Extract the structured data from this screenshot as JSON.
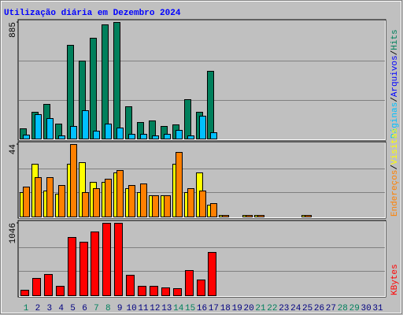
{
  "title": "Utilização diária em Dezembro 2024",
  "legend_separator": "/",
  "categories": [
    "1",
    "2",
    "3",
    "4",
    "5",
    "6",
    "7",
    "8",
    "9",
    "10",
    "11",
    "12",
    "13",
    "14",
    "15",
    "16",
    "17",
    "18",
    "19",
    "20",
    "21",
    "22",
    "23",
    "24",
    "25",
    "26",
    "27",
    "28",
    "29",
    "30",
    "31"
  ],
  "category_colors": [
    "#00805C",
    "#000080",
    "#000080",
    "#000080",
    "#000080",
    "#000080",
    "#00805C",
    "#00805C",
    "#000080",
    "#000080",
    "#000080",
    "#000080",
    "#000080",
    "#00805C",
    "#00805C",
    "#000080",
    "#000080",
    "#000080",
    "#000080",
    "#000080",
    "#00805C",
    "#00805C",
    "#000080",
    "#000080",
    "#000080",
    "#000080",
    "#000080",
    "#00805C",
    "#00805C",
    "#000080",
    "#000080"
  ],
  "chart_data": [
    {
      "type": "bar",
      "ylim": [
        0,
        885
      ],
      "yticks": [
        885
      ],
      "grid_values": [
        295,
        590
      ],
      "series": [
        {
          "name": "Hits",
          "color": "#00805C",
          "values": [
            78,
            203,
            263,
            114,
            712,
            592,
            765,
            867,
            885,
            245,
            126,
            138,
            96,
            108,
            299,
            203,
            514,
            2,
            0,
            2,
            2,
            0,
            0,
            0,
            2,
            0,
            0,
            0,
            0,
            0,
            0
          ]
        },
        {
          "name": "Arquivos",
          "color": "#0000FF",
          "values": [
            30,
            185,
            155,
            24,
            96,
            215,
            60,
            114,
            84,
            36,
            36,
            24,
            36,
            66,
            24,
            173,
            48,
            0,
            0,
            0,
            0,
            0,
            0,
            0,
            0,
            0,
            0,
            0,
            0,
            0,
            0
          ]
        },
        {
          "name": "Páginas",
          "color": "#00C0FF",
          "values": [
            30,
            185,
            155,
            24,
            96,
            215,
            60,
            114,
            84,
            36,
            36,
            24,
            36,
            66,
            24,
            173,
            48,
            0,
            0,
            0,
            0,
            0,
            0,
            0,
            0,
            0,
            0,
            0,
            0,
            0,
            0
          ]
        }
      ]
    },
    {
      "type": "bar",
      "ylim": [
        0,
        44
      ],
      "yticks": [
        44
      ],
      "grid_values": [
        14.67,
        29.33
      ],
      "series": [
        {
          "name": "Visitas",
          "color": "#FFFF00",
          "values": [
            15,
            32,
            16,
            14,
            32,
            33,
            21,
            21,
            27,
            17,
            15,
            13,
            13,
            32,
            15,
            27,
            7,
            1,
            0,
            1,
            1,
            0,
            0,
            0,
            1,
            0,
            0,
            0,
            0,
            0,
            0
          ]
        },
        {
          "name": "Endereços",
          "color": "#FF8000",
          "values": [
            18,
            24,
            24,
            19,
            44,
            15,
            17,
            23,
            28,
            19,
            20,
            13,
            13,
            39,
            17,
            16,
            8,
            1,
            0,
            1,
            1,
            0,
            0,
            0,
            1,
            0,
            0,
            0,
            0,
            0,
            0
          ]
        }
      ]
    },
    {
      "type": "bar",
      "ylim": [
        0,
        1046
      ],
      "yticks": [
        1046
      ],
      "grid_values": [
        348.67,
        697.33
      ],
      "series": [
        {
          "name": "KBytes",
          "color": "#FF0000",
          "values": [
            80,
            253,
            310,
            138,
            839,
            770,
            920,
            1046,
            1046,
            299,
            138,
            138,
            115,
            103,
            368,
            230,
            621,
            2,
            0,
            2,
            2,
            0,
            0,
            0,
            2,
            0,
            0,
            0,
            0,
            0,
            0
          ]
        }
      ]
    }
  ]
}
